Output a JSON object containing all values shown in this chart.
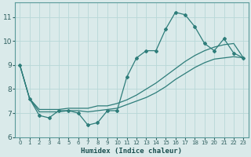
{
  "bg_color": "#daeaea",
  "line_color": "#2e7d7a",
  "grid_color": "#b8d8d8",
  "xlabel": "Humidex (Indice chaleur)",
  "xlim": [
    -0.5,
    23.5
  ],
  "ylim": [
    6,
    11.6
  ],
  "yticks": [
    6,
    7,
    8,
    9,
    10,
    11
  ],
  "xticks": [
    0,
    1,
    2,
    3,
    4,
    5,
    6,
    7,
    8,
    9,
    10,
    11,
    12,
    13,
    14,
    15,
    16,
    17,
    18,
    19,
    20,
    21,
    22,
    23
  ],
  "series_main": [
    9.0,
    7.6,
    6.9,
    6.8,
    7.1,
    7.1,
    7.0,
    6.5,
    6.6,
    7.1,
    7.1,
    8.5,
    9.3,
    9.6,
    9.6,
    10.5,
    11.2,
    11.1,
    10.6,
    9.9,
    9.6,
    10.1,
    9.5,
    9.3
  ],
  "series_trend1": [
    9.0,
    7.6,
    7.15,
    7.15,
    7.15,
    7.2,
    7.2,
    7.2,
    7.3,
    7.3,
    7.4,
    7.55,
    7.75,
    8.0,
    8.25,
    8.55,
    8.85,
    9.15,
    9.4,
    9.6,
    9.75,
    9.85,
    9.9,
    9.3
  ],
  "series_trend2": [
    9.0,
    7.6,
    7.05,
    7.05,
    7.05,
    7.1,
    7.1,
    7.05,
    7.1,
    7.15,
    7.2,
    7.35,
    7.5,
    7.65,
    7.85,
    8.1,
    8.4,
    8.65,
    8.9,
    9.1,
    9.25,
    9.3,
    9.35,
    9.3
  ]
}
